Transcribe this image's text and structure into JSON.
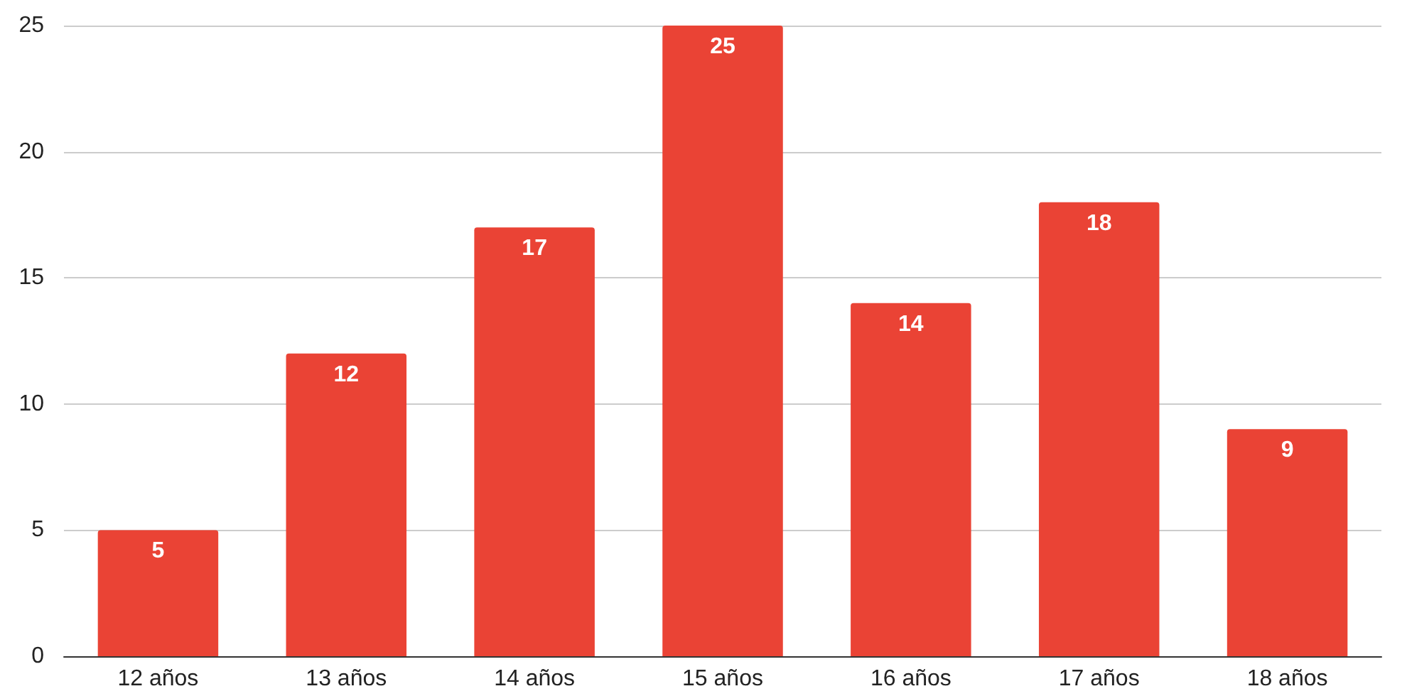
{
  "chart_data": {
    "type": "bar",
    "categories": [
      "12 años",
      "13 años",
      "14 años",
      "15 años",
      "16 años",
      "17 años",
      "18 años"
    ],
    "values": [
      5,
      12,
      17,
      25,
      14,
      18,
      9
    ],
    "color": "#ea4335",
    "ylim": [
      0,
      25
    ],
    "yticks": [
      0,
      5,
      10,
      15,
      20,
      25
    ],
    "grid": "y",
    "data_labels": true
  }
}
